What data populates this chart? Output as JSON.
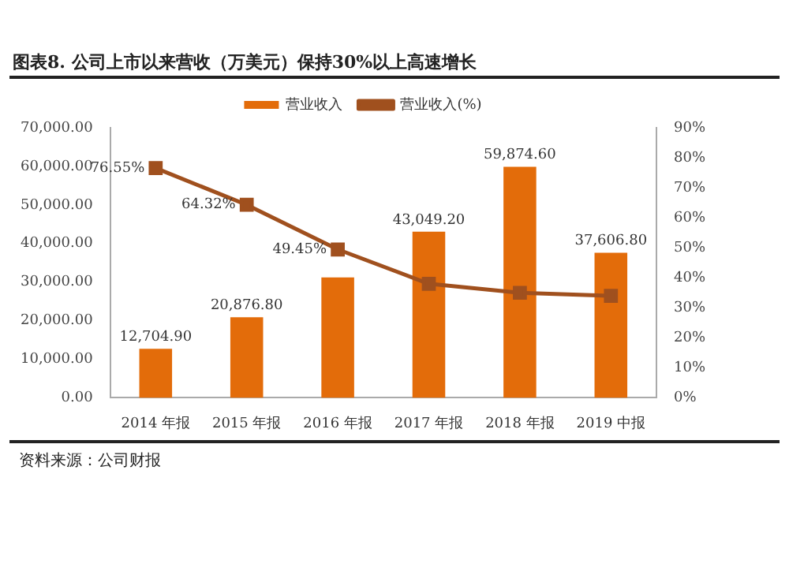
{
  "chart_data": {
    "type": "bar",
    "title": "图表8.   公司上市以来营收（万美元）保持30%以上高速增长",
    "categories": [
      "2014 年报",
      "2015 年报",
      "2016 年报",
      "2017 年报",
      "2018 年报",
      "2019 中报"
    ],
    "series": [
      {
        "name": "营业收入",
        "color": "#e36c0a",
        "values": [
          12704.9,
          20876.8,
          31200,
          43049.2,
          59874.6,
          37606.8
        ],
        "value_labels": [
          "12,704.90",
          "20,876.80",
          null,
          "43,049.20",
          "59,874.60",
          "37,606.80"
        ]
      },
      {
        "name": "营业收入(%)",
        "type": "line",
        "axis": "y2",
        "color": "#a0501e",
        "marker": "square",
        "values": [
          76.55,
          64.32,
          49.45,
          38,
          35,
          34
        ],
        "value_labels": [
          "76.55%",
          "64.32%",
          "49.45%",
          null,
          null,
          null
        ]
      }
    ],
    "ylim": [
      0,
      70000
    ],
    "yticks": [
      {
        "value": 0,
        "label": "0.00"
      },
      {
        "value": 10000,
        "label": "10,000.00"
      },
      {
        "value": 20000,
        "label": "20,000.00"
      },
      {
        "value": 30000,
        "label": "30,000.00"
      },
      {
        "value": 40000,
        "label": "40,000.00"
      },
      {
        "value": 50000,
        "label": "50,000.00"
      },
      {
        "value": 60000,
        "label": "60,000.00"
      },
      {
        "value": 70000,
        "label": "70,000.00"
      }
    ],
    "y2lim": [
      0,
      90
    ],
    "y2ticks": [
      {
        "value": 0,
        "label": "0%"
      },
      {
        "value": 10,
        "label": "10%"
      },
      {
        "value": 20,
        "label": "20%"
      },
      {
        "value": 30,
        "label": "30%"
      },
      {
        "value": 40,
        "label": "40%"
      },
      {
        "value": 50,
        "label": "50%"
      },
      {
        "value": 60,
        "label": "60%"
      },
      {
        "value": 70,
        "label": "70%"
      },
      {
        "value": 80,
        "label": "80%"
      },
      {
        "value": 90,
        "label": "90%"
      }
    ],
    "legend": "top",
    "grid": false,
    "annotations": [
      "资料来源：公司财报"
    ]
  }
}
